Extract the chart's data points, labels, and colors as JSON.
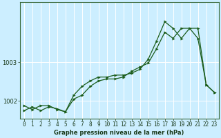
{
  "xlabel": "Graphe pression niveau de la mer (hPa)",
  "background_color": "#cceeff",
  "line_color": "#1a5c1a",
  "grid_color": "#ffffff",
  "x_ticks": [
    0,
    1,
    2,
    3,
    4,
    5,
    6,
    7,
    8,
    9,
    10,
    11,
    12,
    13,
    14,
    15,
    16,
    17,
    18,
    19,
    20,
    21,
    22,
    23
  ],
  "y_ticks": [
    1002,
    1003
  ],
  "ylim": [
    1001.55,
    1004.55
  ],
  "xlim": [
    -0.5,
    23.5
  ],
  "series1": [
    1001.75,
    1001.85,
    1001.75,
    1001.85,
    1001.8,
    1001.72,
    1002.05,
    1002.15,
    1002.38,
    1002.52,
    1002.57,
    1002.57,
    1002.62,
    1002.77,
    1002.88,
    1002.98,
    1003.35,
    1003.78,
    1003.62,
    1003.88,
    1003.88,
    1003.62,
    1002.42,
    1002.22
  ],
  "series2": [
    1001.88,
    1001.78,
    1001.88,
    1001.88,
    1001.78,
    1001.72,
    1002.15,
    1002.38,
    1002.52,
    1002.62,
    1002.62,
    1002.67,
    1002.67,
    1002.72,
    1002.82,
    1003.08,
    1003.55,
    1004.05,
    1003.88,
    1003.62,
    1003.88,
    1003.88,
    1002.42,
    1002.22
  ],
  "tick_fontsize": 5.5,
  "xlabel_fontsize": 6.0,
  "linewidth": 0.9,
  "markersize": 2.5
}
